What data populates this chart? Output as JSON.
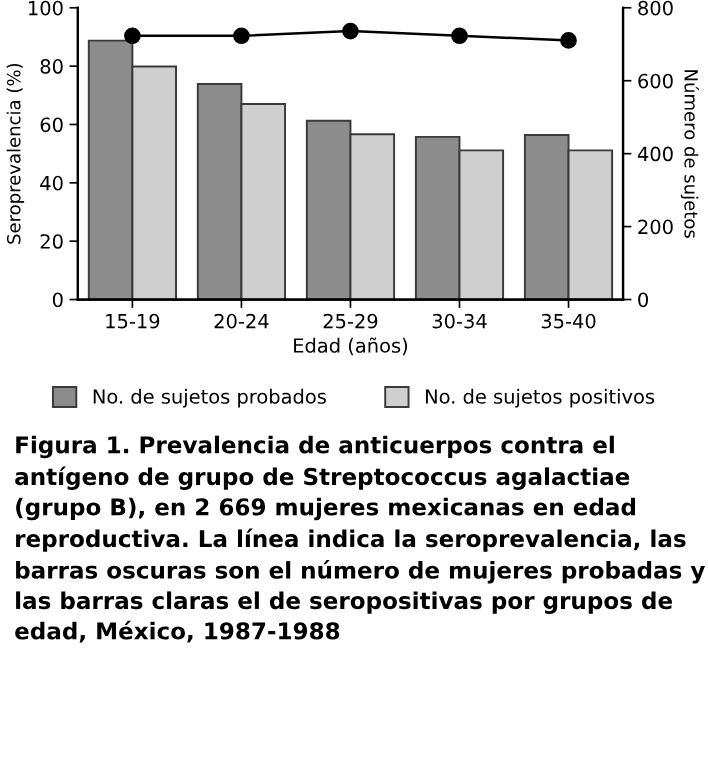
{
  "chart_data": {
    "type": "bar",
    "xlabel": "Edad (años)",
    "ylabel": "Seroprevalencia (%)",
    "y2label": "Número de sujetos",
    "categories": [
      "15-19",
      "20-24",
      "25-29",
      "30-34",
      "35-40"
    ],
    "series": [
      {
        "name": "No. de sujetos probados",
        "color": "#8c8c8c",
        "axis": "y2",
        "values": [
          710,
          591,
          490,
          446,
          451
        ]
      },
      {
        "name": "No. de sujetos positivos",
        "color": "#cfcfcf",
        "axis": "y2",
        "values": [
          639,
          536,
          453,
          409,
          409
        ]
      },
      {
        "type": "line",
        "color": "#000000",
        "values": [
          90.4,
          90.4,
          92,
          90.4,
          88.8
        ]
      }
    ],
    "ylim": [
      0,
      100
    ],
    "yticks": [
      0,
      20,
      40,
      60,
      80,
      100
    ],
    "y2lim": [
      0,
      800
    ],
    "y2ticks": [
      0,
      200,
      400,
      600,
      800
    ],
    "marker": "circle",
    "line_style": "solid",
    "grid": false,
    "legend": "bottom",
    "annotations": [
      "Figura 1. Prevalencia de anticuerpos contra el antígeno de grupo de Streptococcus agalactiae (grupo B), en 2 669 mujeres mexicanas en edad reproductiva. La línea indica la seroprevalencia, las barras oscuras son el número de mujeres probadas y las barras claras el de seropositivas por grupos de edad, México, 1987-1988"
    ]
  }
}
